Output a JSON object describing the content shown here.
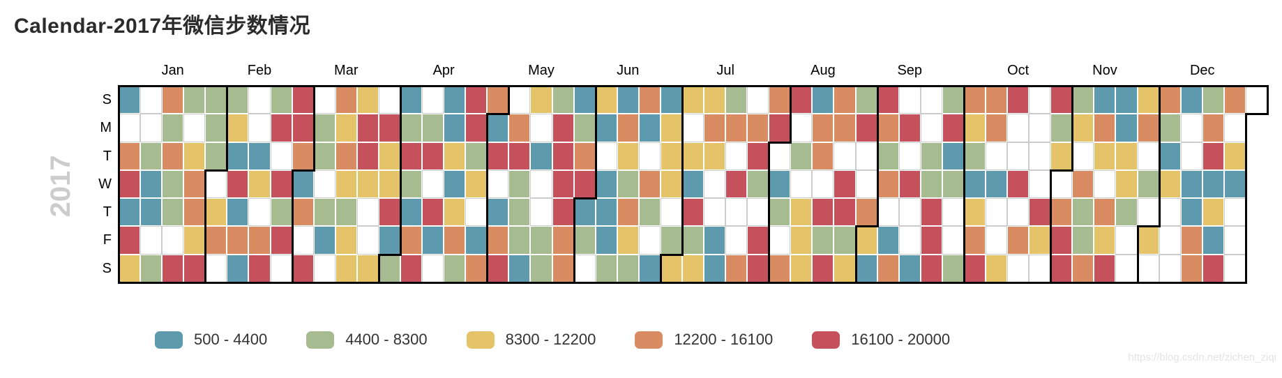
{
  "title": "Calendar-2017年微信步数情况",
  "year_label": "2017",
  "watermark": "https://blog.csdn.net/zichen_ziqi",
  "chart_data": {
    "type": "heatmap",
    "subtype": "calendar-heatmap",
    "calendar_year": 2017,
    "title": "Calendar-2017年微信步数情况",
    "month_labels": [
      "Jan",
      "Feb",
      "Mar",
      "Apr",
      "May",
      "Jun",
      "Jul",
      "Aug",
      "Sep",
      "Oct",
      "Nov",
      "Dec"
    ],
    "day_labels": [
      "S",
      "M",
      "T",
      "W",
      "T",
      "F",
      "S"
    ],
    "palette": {
      "B": "#5e9aad",
      "G": "#a6bb8f",
      "Y": "#e5c469",
      "O": "#d98b61",
      "R": "#c5515c",
      "W": "#ffffff"
    },
    "legend": [
      {
        "label": "500 - 4400",
        "color_key": "B",
        "color": "#5e9aad"
      },
      {
        "label": "4400 - 8300",
        "color_key": "G",
        "color": "#a6bb8f"
      },
      {
        "label": "8300 - 12200",
        "color_key": "Y",
        "color": "#e5c469"
      },
      {
        "label": "12200 - 16100",
        "color_key": "O",
        "color": "#d98b61"
      },
      {
        "label": "16100 - 20000",
        "color_key": "R",
        "color": "#c5515c"
      }
    ],
    "legend_note": "W means day with no mapped value (blank cell)",
    "weeks": [
      "BWORBRY",
      "WWGBBWG",
      "OGOGGWR",
      "GWYOOYR",
      "GGGWYOW",
      "GYBRBOB",
      "WWBYWOR",
      "GRWRGRW",
      "RROBOWR",
      "WGGWGBW",
      "OYOYGYY",
      "YRRYWWY",
      "WRYYRBG",
      "BGRGBOR",
      "WGRWRBW",
      "BBYBYOG",
      "RRGYWBO",
      "OBRWBOR",
      "WORGGGB",
      "YWBWWGG",
      "GRRRROO",
      "BGORBGW",
      "YBWBBBG",
      "BOYGOYG",
      "OBWOGWB",
      "BYYYWGY",
      "YWYBRGY",
      "YOYWWBB",
      "GOWRWWO",
      "WORGWRR",
      "ORWBGWO",
      "RWGWYYY",
      "BOOWRGR",
      "OOWRRGY",
      "GRWWOYB",
      "ROGOWBO",
      "WRWRWWB",
      "WWGGRRR",
      "GRBGWWG",
      "OYGBYOR",
      "OOWBWWY",
      "RWWRWOW",
      "WWWWRYW",
      "RGYWORR",
      "GYWOGGO",
      "BOYWOYR",
      "BBYYGWW",
      "YOWGWYW",
      "OGBYWWW",
      "BWWBBOO",
      "GORBYBR",
      "OWYBWWW",
      "W"
    ]
  }
}
